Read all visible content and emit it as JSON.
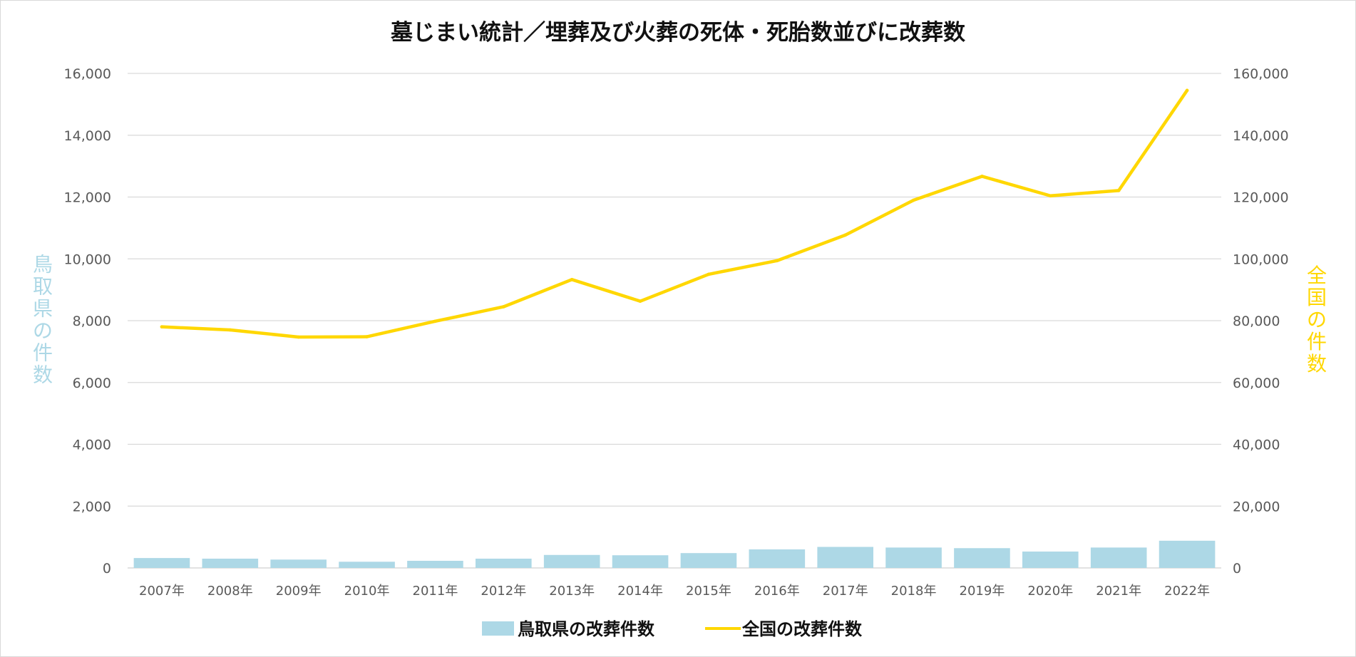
{
  "chart_data": {
    "type": "bar",
    "title": "墓じまい統計／埋葬及び火葬の死体・死胎数並びに改葬数",
    "categories": [
      "2007年",
      "2008年",
      "2009年",
      "2010年",
      "2011年",
      "2012年",
      "2013年",
      "2014年",
      "2015年",
      "2016年",
      "2017年",
      "2018年",
      "2019年",
      "2020年",
      "2021年",
      "2022年"
    ],
    "series": [
      {
        "name": "鳥取県の改葬件数",
        "type": "bar",
        "axis": "left",
        "color": "#add8e6",
        "values": [
          320,
          300,
          270,
          200,
          230,
          300,
          420,
          410,
          480,
          600,
          680,
          660,
          640,
          530,
          660,
          880
        ]
      },
      {
        "name": "全国の改葬件数",
        "type": "line",
        "axis": "right",
        "color": "#ffd700",
        "values": [
          78000,
          77000,
          74700,
          74800,
          79800,
          84500,
          93300,
          86300,
          95000,
          99400,
          107700,
          119000,
          126700,
          120400,
          122100,
          154500
        ]
      }
    ],
    "ylabel_left": "鳥取県の件数",
    "ylabel_right": "全国の件数",
    "ylim_left": [
      0,
      16000
    ],
    "ylim_right": [
      0,
      160000
    ],
    "yticks_left": [
      "0",
      "2,000",
      "4,000",
      "6,000",
      "8,000",
      "10,000",
      "12,000",
      "14,000",
      "16,000"
    ],
    "yticks_right": [
      "0",
      "20,000",
      "40,000",
      "60,000",
      "80,000",
      "100,000",
      "120,000",
      "140,000",
      "160,000"
    ],
    "grid": true,
    "legend_position": "bottom"
  }
}
